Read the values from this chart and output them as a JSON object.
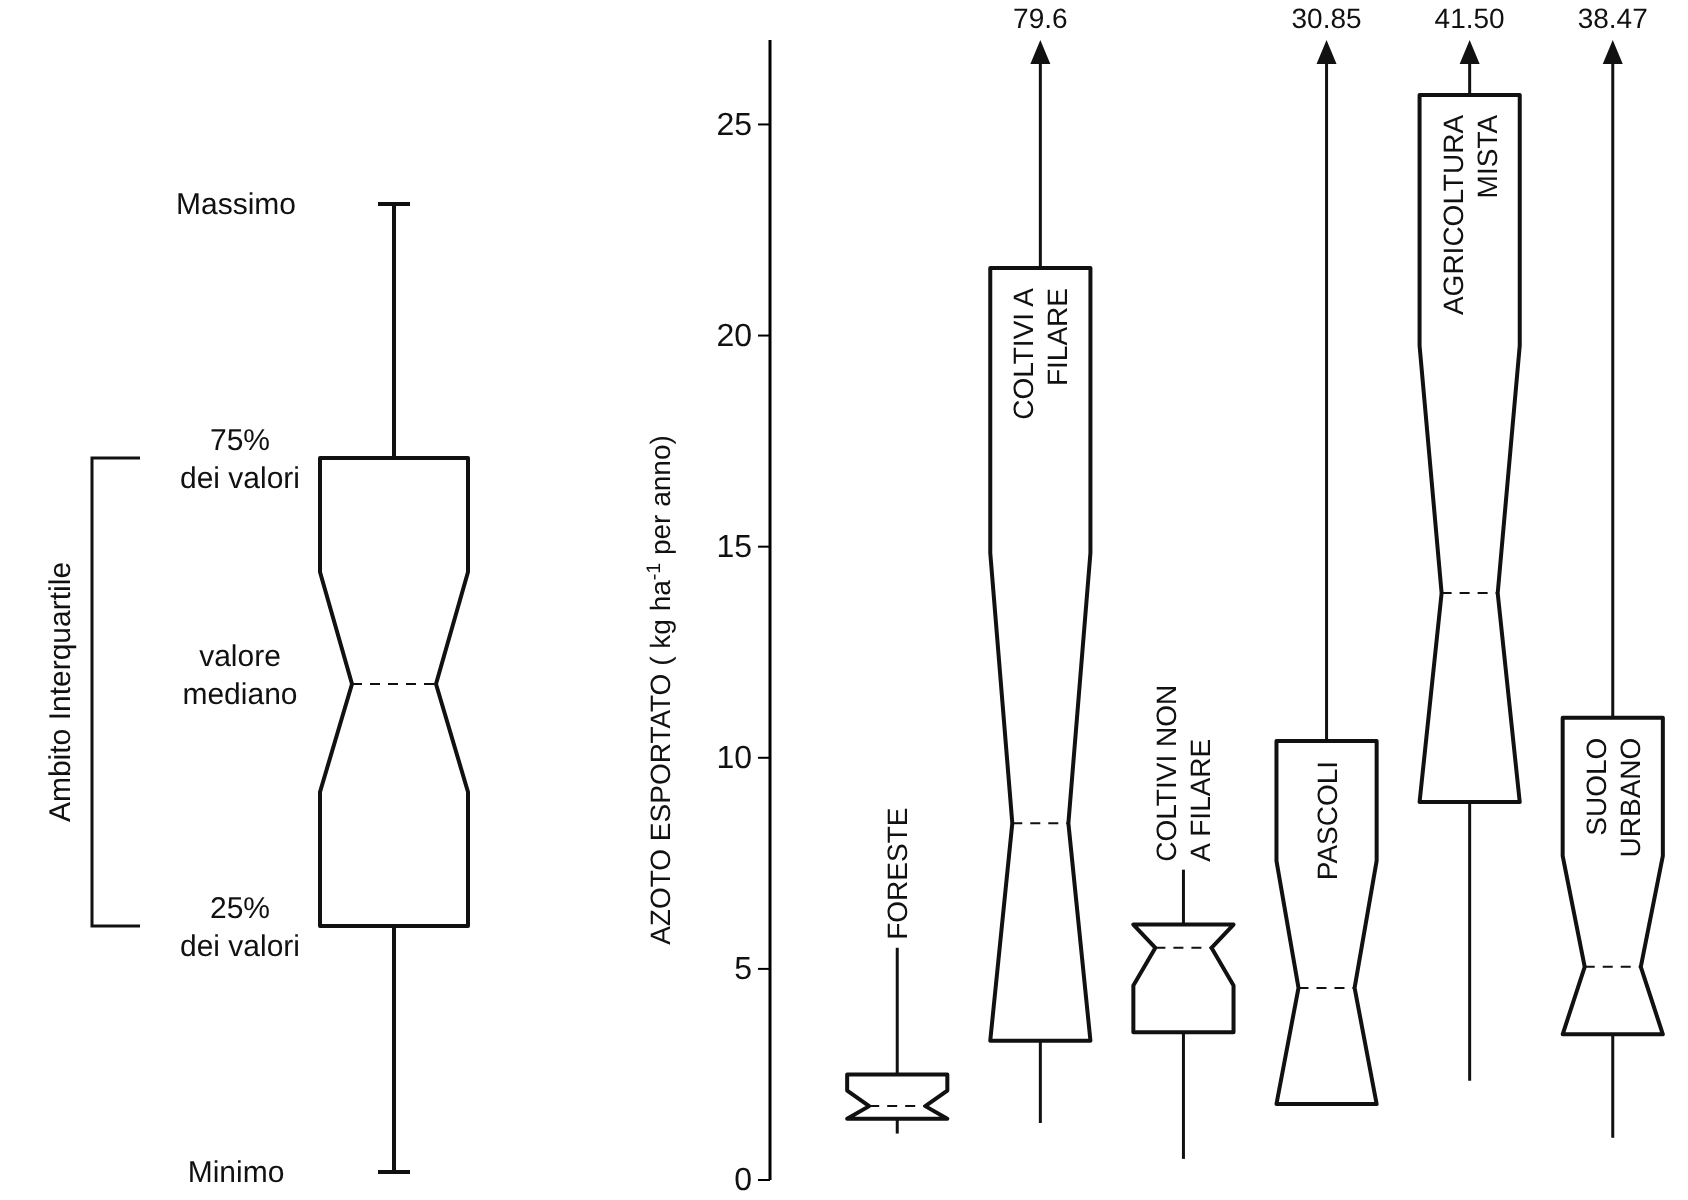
{
  "chart_data": [
    {
      "type": "other",
      "annotations": [
        "Massimo",
        "75% dei valori",
        "valore mediano",
        "25% dei valori",
        "Minimo",
        "Ambito Interquartile"
      ]
    },
    {
      "type": "box",
      "ylabel": "AZOTO ESPORTATO ( kg ha$^{-1}$ per anno)",
      "categories": [
        "FORESTE",
        "COLTIVI A\nFILARE",
        "COLTIVI NON\nA FILARE",
        "PASCOLI",
        "AGRICOLTURA\nMISTA",
        "SUOLO\nURBANO"
      ],
      "boxes": [
        {
          "low": 1.1,
          "q1": 1.45,
          "median": 1.75,
          "q3": 2.5,
          "high": 5.5
        },
        {
          "low": 1.35,
          "q1": 3.3,
          "median": 8.45,
          "q3": 21.6,
          "high": null
        },
        {
          "low": 0.5,
          "q1": 3.5,
          "median": 5.5,
          "q3": 6.05,
          "high": 7.35
        },
        {
          "low": 1.8,
          "q1": 1.8,
          "median": 4.55,
          "q3": 10.4,
          "high": null
        },
        {
          "low": 2.35,
          "q1": 8.95,
          "median": 13.9,
          "q3": 25.7,
          "high": null
        },
        {
          "low": 1.0,
          "q1": 3.45,
          "median": 5.05,
          "q3": 10.95,
          "high": null
        }
      ],
      "value_labels": [
        null,
        "79.6",
        null,
        "30.85",
        "41.50",
        "38.47"
      ],
      "ylim": [
        0,
        27
      ],
      "yticks": [
        0,
        5,
        10,
        15,
        20,
        25
      ],
      "grid": false
    }
  ]
}
